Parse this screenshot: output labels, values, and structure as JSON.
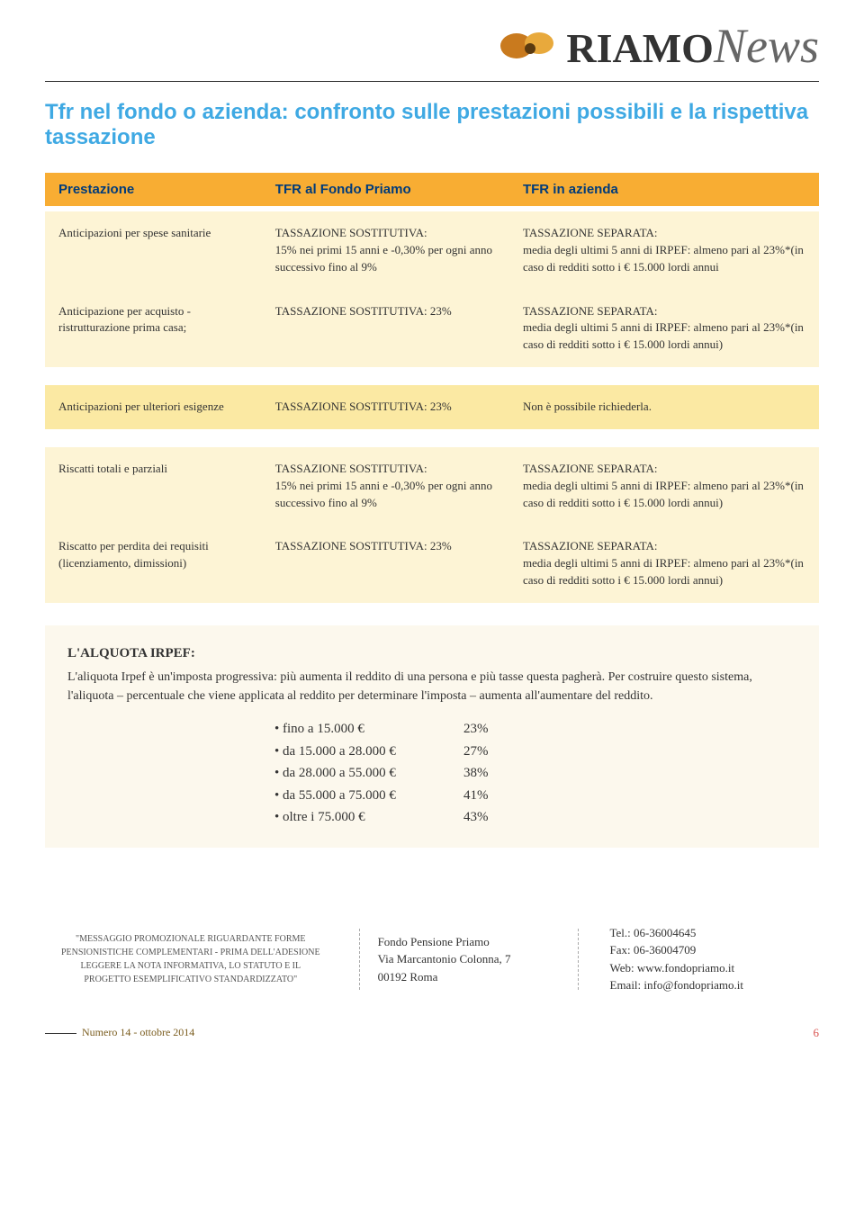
{
  "logo": {
    "text1": "RIAMO",
    "text2": "News"
  },
  "page_title": "Tfr nel fondo o azienda: confronto sulle prestazioni possibili e la rispettiva tassazione",
  "header": {
    "c1": "Prestazione",
    "c2": "TFR al Fondo Priamo",
    "c3": "TFR in azienda"
  },
  "sections": [
    {
      "tone": "cream",
      "rows": [
        {
          "c1": "Anticipazioni per spese sanitarie",
          "c2": "TASSAZIONE SOSTITUTIVA:\n15% nei primi 15 anni e -0,30% per ogni anno successivo fino al 9%",
          "c3": "TASSAZIONE SEPARATA:\nmedia degli ultimi 5 anni di IRPEF: almeno pari al 23%*(in caso di redditi sotto i € 15.000 lordi annui"
        },
        {
          "c1": "Anticipazione per acquisto - ristrutturazione prima casa;",
          "c2": "TASSAZIONE SOSTITUTIVA: 23%",
          "c3": "TASSAZIONE SEPARATA:\nmedia degli ultimi 5 anni di IRPEF: almeno pari al 23%*(in caso di redditi sotto i € 15.000 lordi annui)"
        }
      ]
    },
    {
      "tone": "yellow",
      "rows": [
        {
          "c1": "Anticipazioni per ulteriori esigenze",
          "c2": "TASSAZIONE SOSTITUTIVA: 23%",
          "c3": "Non è possibile richiederla."
        }
      ]
    },
    {
      "tone": "cream",
      "rows": [
        {
          "c1": "Riscatti totali e parziali",
          "c2": "TASSAZIONE SOSTITUTIVA:\n15% nei primi 15 anni e -0,30% per ogni anno successivo fino al 9%",
          "c3": "TASSAZIONE SEPARATA:\nmedia degli ultimi 5 anni di IRPEF: almeno pari al 23%*(in caso di redditi sotto i € 15.000 lordi annui)"
        },
        {
          "c1": "Riscatto per perdita dei requisiti\n(licenziamento, dimissioni)",
          "c2": "TASSAZIONE SOSTITUTIVA: 23%",
          "c3": "TASSAZIONE SEPARATA:\nmedia degli ultimi 5 anni di IRPEF: almeno pari al 23%*(in caso di redditi sotto i € 15.000 lordi annui)"
        }
      ]
    }
  ],
  "irpef": {
    "title": "L'ALQUOTA IRPEF:",
    "body": "L'aliquota Irpef è un'imposta progressiva: più aumenta il reddito di una persona e più tasse questa pagherà. Per costruire questo sistema, l'aliquota – percentuale che viene applicata al reddito per determinare l'imposta – aumenta all'aumentare del reddito.",
    "brackets": [
      {
        "label": "fino a 15.000 €",
        "pct": "23%"
      },
      {
        "label": "da 15.000 a 28.000 €",
        "pct": "27%"
      },
      {
        "label": "da 28.000 a 55.000 €",
        "pct": "38%"
      },
      {
        "label": "da 55.000 a 75.000 €",
        "pct": "41%"
      },
      {
        "label": "oltre i  75.000 €",
        "pct": "43%"
      }
    ]
  },
  "footer": {
    "promo": "\"MESSAGGIO PROMOZIONALE RIGUARDANTE FORME PENSIONISTICHE COMPLEMENTARI - PRIMA DELL'ADESIONE LEGGERE LA NOTA INFORMATIVA, LO STATUTO E IL PROGETTO ESEMPLIFICATIVO STANDARDIZZATO\"",
    "addr_line1": "Fondo Pensione Priamo",
    "addr_line2": "Via Marcantonio Colonna, 7",
    "addr_line3": "00192 Roma",
    "tel": "Tel.: 06-36004645",
    "fax": "Fax: 06-36004709",
    "web": "Web: www.fondopriamo.it",
    "email": "Email: info@fondopriamo.it"
  },
  "issue": "Numero 14 - ottobre 2014",
  "pagenum": "6",
  "colors": {
    "head_bg": "#f8ad33",
    "head_text": "#003b7a",
    "title": "#3fa9e3",
    "cream": "#fdf4d5",
    "yellow": "#fbe9a3",
    "irpef_bg": "#fcf8ed",
    "pagenum": "#d9534f"
  }
}
